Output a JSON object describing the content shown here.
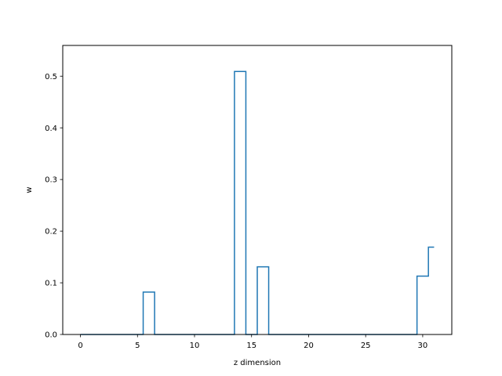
{
  "chart_data": {
    "type": "step",
    "title": "",
    "xlabel": "z dimension",
    "ylabel": "w",
    "xlim": [
      -1.55,
      32.55
    ],
    "ylim": [
      0,
      0.5595
    ],
    "xticks": [
      0,
      5,
      10,
      15,
      20,
      25,
      30
    ],
    "yticks": [
      0.0,
      0.1,
      0.2,
      0.3,
      0.4,
      0.5
    ],
    "xtick_labels": [
      "0",
      "5",
      "10",
      "15",
      "20",
      "25",
      "30"
    ],
    "ytick_labels": [
      "0.0",
      "0.1",
      "0.2",
      "0.3",
      "0.4",
      "0.5"
    ],
    "step_where": "mid",
    "grid": false,
    "series": [
      {
        "color": "#1f77b4",
        "x": [
          0,
          1,
          2,
          3,
          4,
          5,
          6,
          7,
          8,
          9,
          10,
          11,
          12,
          13,
          14,
          15,
          16,
          17,
          18,
          19,
          20,
          21,
          22,
          23,
          24,
          25,
          26,
          27,
          28,
          29,
          30,
          31
        ],
        "values": [
          0,
          0,
          0,
          0,
          0,
          0,
          0.082,
          0,
          0,
          0,
          0,
          0,
          0,
          0,
          0.509,
          0,
          0.131,
          0,
          0,
          0,
          0,
          0,
          0,
          0,
          0,
          0,
          0,
          0,
          0,
          0,
          0.113,
          0.169
        ]
      }
    ]
  }
}
